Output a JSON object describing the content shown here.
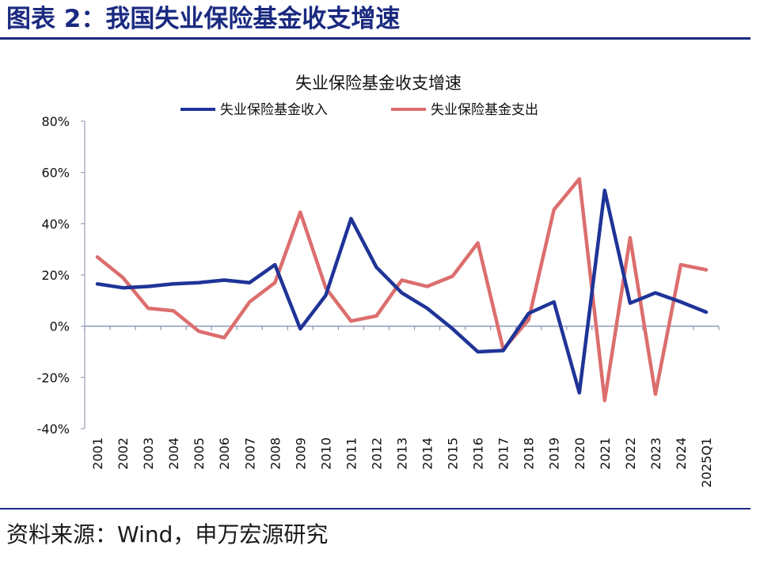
{
  "figure": {
    "title": "图表 2：我国失业保险基金收支增速",
    "source": "资料来源：Wind，申万宏源研究"
  },
  "colors": {
    "brand": "#1a2a80",
    "income": "#1f3497",
    "expense": "#dc6e6e"
  },
  "chart_data": {
    "type": "line",
    "title": "失业保险基金收支增速",
    "xlabel": "",
    "ylabel": "",
    "categories": [
      "2001",
      "2002",
      "2003",
      "2004",
      "2005",
      "2006",
      "2007",
      "2008",
      "2009",
      "2010",
      "2011",
      "2012",
      "2013",
      "2014",
      "2015",
      "2016",
      "2017",
      "2018",
      "2019",
      "2020",
      "2021",
      "2022",
      "2023",
      "2024",
      "2025Q1"
    ],
    "series": [
      {
        "name": "失业保险基金收入",
        "color": "#1f3497",
        "values": [
          16.5,
          15,
          15.5,
          16.5,
          17,
          18,
          17,
          24,
          -1,
          12,
          42,
          23,
          13,
          7,
          -1,
          -10,
          -9.5,
          5,
          9.5,
          -26,
          53,
          9,
          13,
          9.5,
          5.5
        ]
      },
      {
        "name": "失业保险基金支出",
        "color": "#dc6e6e",
        "values": [
          27,
          19,
          7,
          6,
          -2,
          -4.5,
          9.5,
          17,
          44.5,
          15,
          2,
          4,
          18,
          15.5,
          19.5,
          32.5,
          -9,
          2.5,
          45.5,
          57.5,
          -29,
          34.5,
          -26.5,
          24,
          22
        ]
      }
    ],
    "ylim": [
      -40,
      80
    ],
    "yticks": [
      -40,
      -20,
      0,
      20,
      40,
      60,
      80
    ],
    "ytick_labels": [
      "-40%",
      "-20%",
      "0%",
      "20%",
      "40%",
      "60%",
      "80%"
    ],
    "legend_position": "top",
    "grid": false
  }
}
